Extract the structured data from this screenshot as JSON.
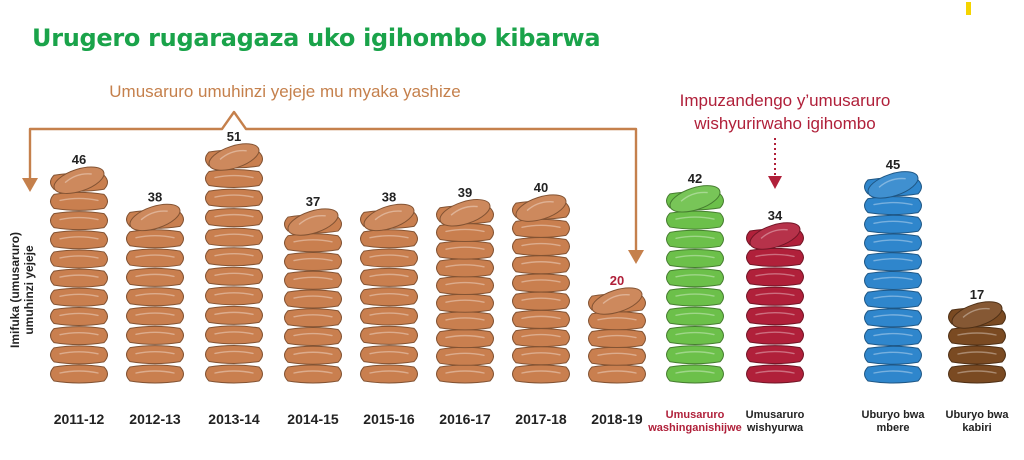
{
  "title": "Urugero rugaragaza uko igihombo kibarwa",
  "annotation_past": "Umusaruro umuhinzi yejeje mu myaka yashize",
  "annotation_avg": [
    "Impuzandengo y’umusaruro",
    "wishyurirwaho igihombo"
  ],
  "colors": {
    "title": "#1aa34a",
    "brown_bag": "#c97f4f",
    "green_bag": "#6cc04a",
    "red_bag": "#b0203a",
    "blue_bag": "#2f86cc",
    "dark_bag": "#7a4a22",
    "bracket": "#c5804c",
    "red_text": "#b0203a"
  },
  "chart_data": {
    "type": "bar",
    "ylabel": [
      "Imifuka (umusaruro)",
      "umuhinzi yejeje"
    ],
    "categories": [
      {
        "label": [
          "2011-12"
        ],
        "value": 46,
        "color": "brown",
        "label_style": "year"
      },
      {
        "label": [
          "2012-13"
        ],
        "value": 38,
        "color": "brown",
        "label_style": "year"
      },
      {
        "label": [
          "2013-14"
        ],
        "value": 51,
        "color": "brown",
        "label_style": "year"
      },
      {
        "label": [
          "2014-15"
        ],
        "value": 37,
        "color": "brown",
        "label_style": "year"
      },
      {
        "label": [
          "2015-16"
        ],
        "value": 38,
        "color": "brown",
        "label_style": "year"
      },
      {
        "label": [
          "2016-17"
        ],
        "value": 39,
        "color": "brown",
        "label_style": "year"
      },
      {
        "label": [
          "2017-18"
        ],
        "value": 40,
        "color": "brown",
        "label_style": "year"
      },
      {
        "label": [
          "2018-19"
        ],
        "value": 20,
        "color": "brown",
        "label_style": "year",
        "value_color": "red"
      },
      {
        "label": [
          "Umusaruro",
          "washinganishijwe"
        ],
        "value": 42,
        "color": "green",
        "label_style": "cat_red"
      },
      {
        "label": [
          "Umusaruro",
          "wishyurwa"
        ],
        "value": 34,
        "color": "red",
        "label_style": "cat"
      },
      {
        "label": [
          "Uburyo bwa",
          "mbere"
        ],
        "value": 45,
        "color": "blue",
        "label_style": "cat"
      },
      {
        "label": [
          "Uburyo bwa",
          "kabiri"
        ],
        "value": 17,
        "color": "dark",
        "label_style": "cat"
      }
    ]
  }
}
